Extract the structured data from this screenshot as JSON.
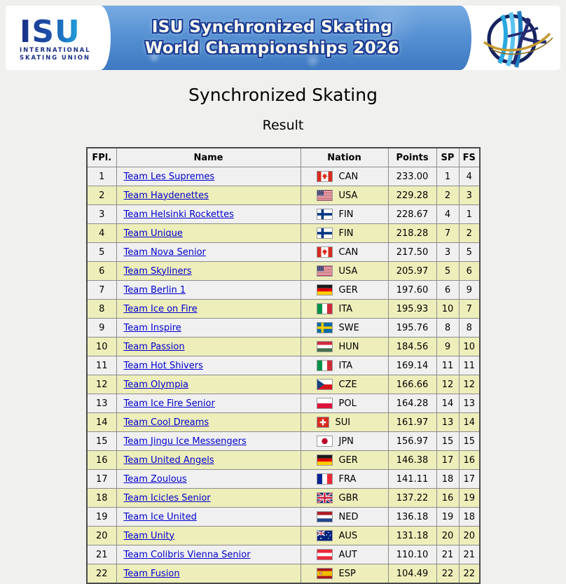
{
  "banner": {
    "isu_logo": {
      "text": "ISU",
      "line1": "INTERNATIONAL",
      "line2": "SKATING UNION"
    },
    "title_line1": "ISU Synchronized Skating",
    "title_line2": "World Championships 2026",
    "event_logo": "synchronized-skating-championship-logo"
  },
  "page": {
    "title": "Synchronized Skating",
    "subtitle": "Result"
  },
  "table": {
    "headers": [
      "FPl.",
      "Name",
      "Nation",
      "Points",
      "SP",
      "FS"
    ],
    "rows": [
      {
        "fpl": "1",
        "name": "Team Les Supremes",
        "nation": "CAN",
        "points": "233.00",
        "sp": "1",
        "fs": "4"
      },
      {
        "fpl": "2",
        "name": "Team Haydenettes",
        "nation": "USA",
        "points": "229.28",
        "sp": "2",
        "fs": "3"
      },
      {
        "fpl": "3",
        "name": "Team Helsinki Rockettes",
        "nation": "FIN",
        "points": "228.67",
        "sp": "4",
        "fs": "1"
      },
      {
        "fpl": "4",
        "name": "Team Unique",
        "nation": "FIN",
        "points": "218.28",
        "sp": "7",
        "fs": "2"
      },
      {
        "fpl": "5",
        "name": "Team Nova Senior",
        "nation": "CAN",
        "points": "217.50",
        "sp": "3",
        "fs": "5"
      },
      {
        "fpl": "6",
        "name": "Team Skyliners",
        "nation": "USA",
        "points": "205.97",
        "sp": "5",
        "fs": "6"
      },
      {
        "fpl": "7",
        "name": "Team Berlin 1",
        "nation": "GER",
        "points": "197.60",
        "sp": "6",
        "fs": "9"
      },
      {
        "fpl": "8",
        "name": "Team Ice on Fire",
        "nation": "ITA",
        "points": "195.93",
        "sp": "10",
        "fs": "7"
      },
      {
        "fpl": "9",
        "name": "Team Inspire",
        "nation": "SWE",
        "points": "195.76",
        "sp": "8",
        "fs": "8"
      },
      {
        "fpl": "10",
        "name": "Team Passion",
        "nation": "HUN",
        "points": "184.56",
        "sp": "9",
        "fs": "10"
      },
      {
        "fpl": "11",
        "name": "Team Hot Shivers",
        "nation": "ITA",
        "points": "169.14",
        "sp": "11",
        "fs": "11"
      },
      {
        "fpl": "12",
        "name": "Team Olympia",
        "nation": "CZE",
        "points": "166.66",
        "sp": "12",
        "fs": "12"
      },
      {
        "fpl": "13",
        "name": "Team Ice Fire Senior",
        "nation": "POL",
        "points": "164.28",
        "sp": "14",
        "fs": "13"
      },
      {
        "fpl": "14",
        "name": "Team Cool Dreams",
        "nation": "SUI",
        "points": "161.97",
        "sp": "13",
        "fs": "14"
      },
      {
        "fpl": "15",
        "name": "Team Jingu Ice Messengers",
        "nation": "JPN",
        "points": "156.97",
        "sp": "15",
        "fs": "15"
      },
      {
        "fpl": "16",
        "name": "Team United Angels",
        "nation": "GER",
        "points": "146.38",
        "sp": "17",
        "fs": "16"
      },
      {
        "fpl": "17",
        "name": "Team Zoulous",
        "nation": "FRA",
        "points": "141.11",
        "sp": "18",
        "fs": "17"
      },
      {
        "fpl": "18",
        "name": "Team Icicles Senior",
        "nation": "GBR",
        "points": "137.22",
        "sp": "16",
        "fs": "19"
      },
      {
        "fpl": "19",
        "name": "Team Ice United",
        "nation": "NED",
        "points": "136.18",
        "sp": "19",
        "fs": "18"
      },
      {
        "fpl": "20",
        "name": "Team Unity",
        "nation": "AUS",
        "points": "131.18",
        "sp": "20",
        "fs": "20"
      },
      {
        "fpl": "21",
        "name": "Team Colibris Vienna Senior",
        "nation": "AUT",
        "points": "110.10",
        "sp": "21",
        "fs": "21"
      },
      {
        "fpl": "22",
        "name": "Team Fusion",
        "nation": "ESP",
        "points": "104.49",
        "sp": "22",
        "fs": "22"
      }
    ]
  },
  "colors": {
    "row_odd": "#f0f0f0",
    "row_even": "#eeeebb",
    "link": "#0000cc",
    "banner_blue": "#5590d2",
    "isu_navy": "#1c2e85",
    "gold": "#c3992f"
  }
}
